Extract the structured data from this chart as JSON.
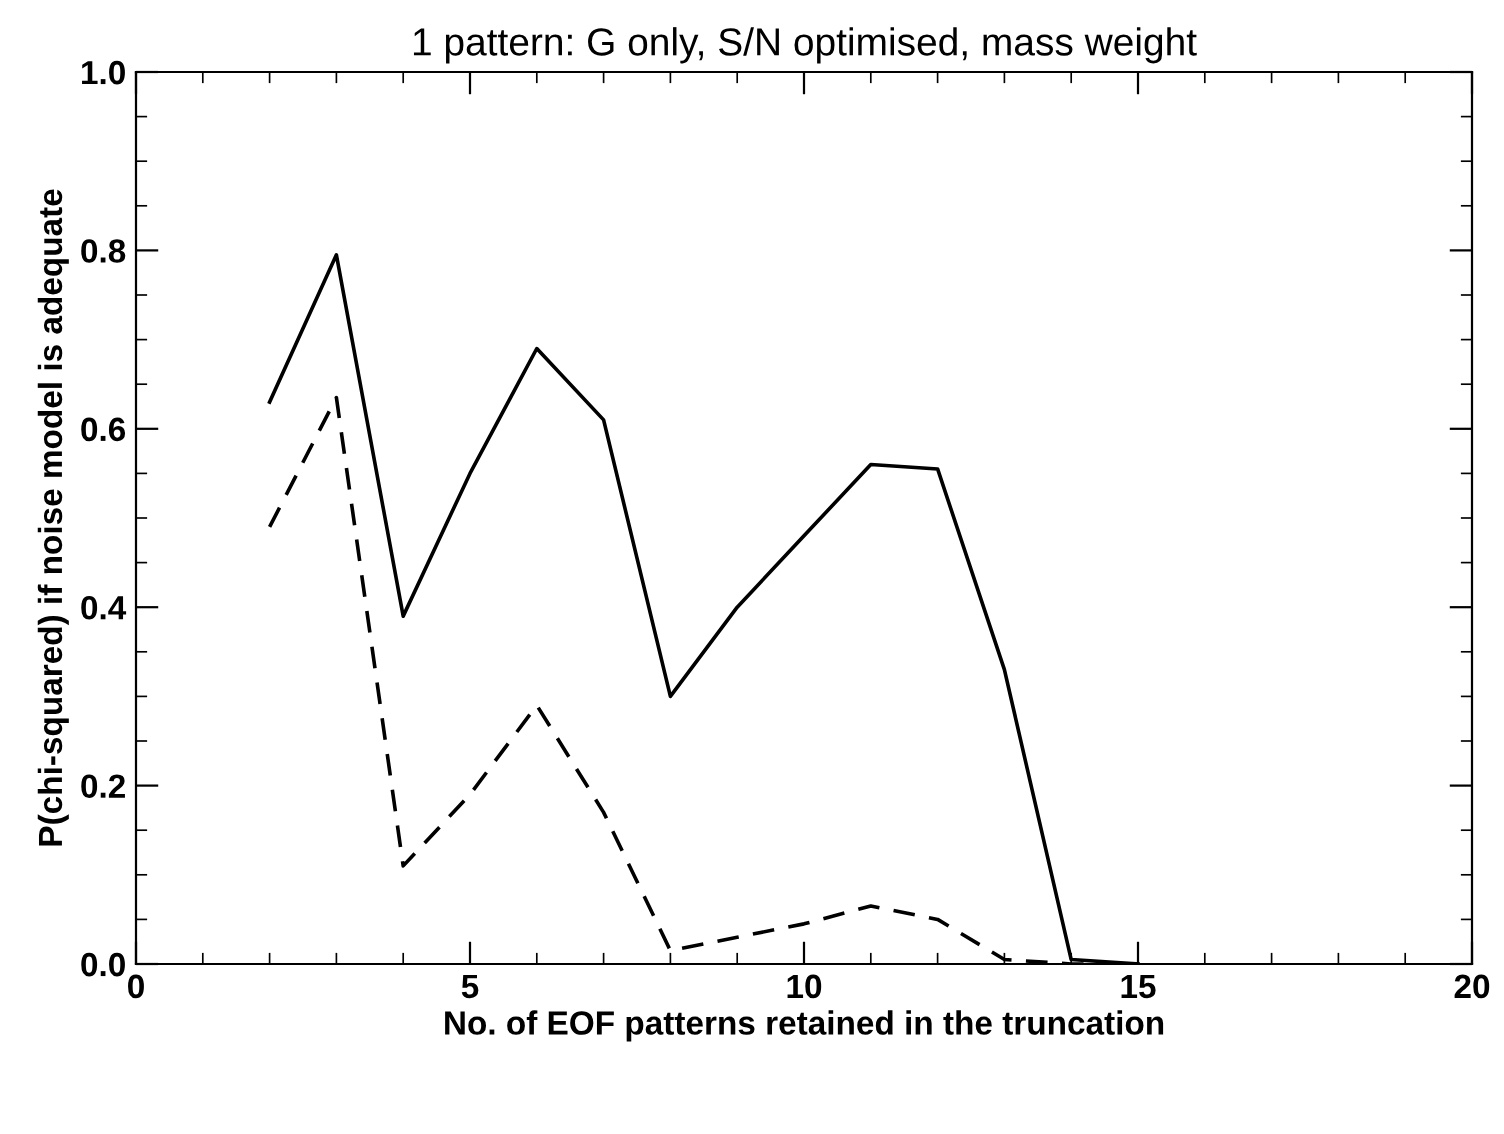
{
  "chart_data": {
    "type": "line",
    "title": "1 pattern: G only, S/N optimised, mass weight",
    "xlabel": "No. of EOF patterns retained in the truncation",
    "ylabel": "P(chi-squared) if noise model is adequate",
    "x": [
      2,
      3,
      4,
      5,
      6,
      7,
      8,
      9,
      10,
      11,
      12,
      13,
      14,
      15
    ],
    "series": [
      {
        "color": "#000000",
        "line_style": "solid",
        "values": [
          0.63,
          0.795,
          0.39,
          0.55,
          0.69,
          0.61,
          0.3,
          0.4,
          0.48,
          0.56,
          0.555,
          0.33,
          0.005,
          0.0
        ]
      },
      {
        "color": "#000000",
        "line_style": "dashed",
        "values": [
          0.49,
          0.635,
          0.11,
          0.19,
          0.29,
          0.17,
          0.015,
          0.03,
          0.045,
          0.065,
          0.05,
          0.005,
          0.0,
          0.0
        ]
      }
    ],
    "xlim": [
      0,
      20
    ],
    "ylim": [
      0,
      1
    ],
    "xticks": [
      0,
      5,
      10,
      15,
      20
    ],
    "yticks": [
      {
        "value": 0,
        "label": "0.0"
      },
      {
        "value": 0.2,
        "label": "0.2"
      },
      {
        "value": 0.4,
        "label": "0.4"
      },
      {
        "value": 0.6,
        "label": "0.6"
      },
      {
        "value": 0.8,
        "label": "0.8"
      },
      {
        "value": 1.0,
        "label": "1.0"
      }
    ],
    "grid": false,
    "legend": false,
    "marker": "none"
  }
}
